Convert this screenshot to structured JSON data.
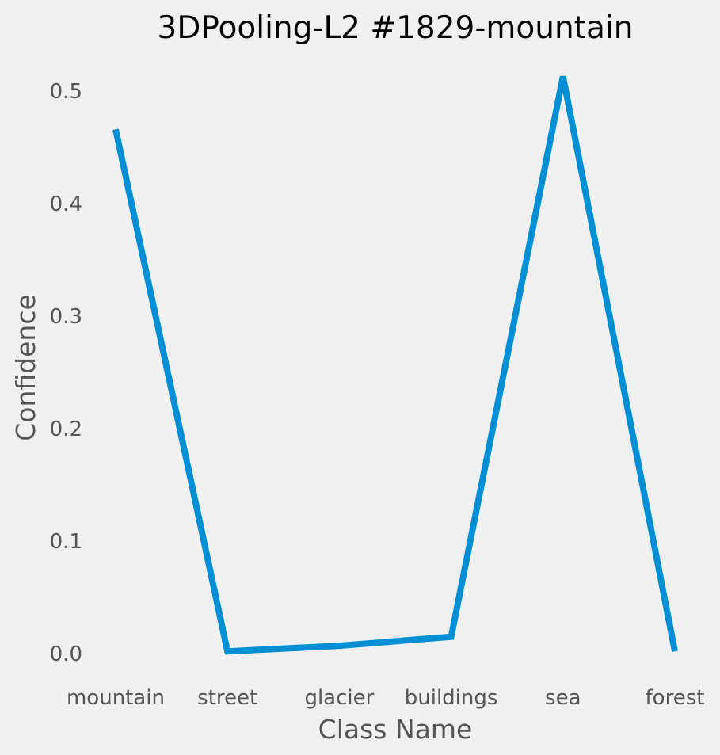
{
  "chart_data": {
    "type": "line",
    "title": "3DPooling-L2 #1829-mountain",
    "xlabel": "Class Name",
    "ylabel": "Confidence",
    "categories": [
      "mountain",
      "street",
      "glacier",
      "buildings",
      "sea",
      "forest"
    ],
    "series": [
      {
        "values": [
          0.466,
          0.002,
          0.007,
          0.015,
          0.513,
          0.002
        ],
        "color": "#008fd5"
      }
    ],
    "yticks": [
      "0.0",
      "0.1",
      "0.2",
      "0.3",
      "0.4",
      "0.5"
    ],
    "ylim": [
      -0.03,
      0.53
    ],
    "grid": false,
    "background": "#f0f0f0"
  }
}
